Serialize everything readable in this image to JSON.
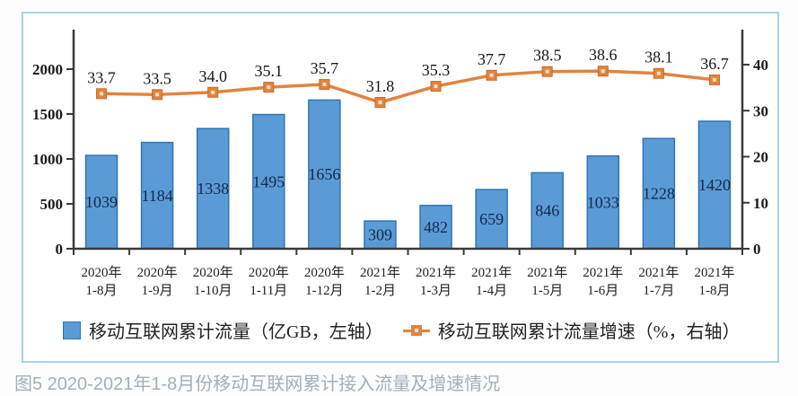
{
  "caption": "图5 2020-2021年1-8月份移动互联网累计接入流量及增速情况",
  "colors": {
    "bar_fill": "#5B9BD5",
    "bar_border": "#2E75B6",
    "line": "#E2833E",
    "line_border": "#C96A28",
    "marker_inner": "#FBE3CC",
    "axis": "#3a3a3a",
    "panel_border": "#ABD2E6",
    "panel_fill": "#ffffff",
    "caption_text": "#A0B0BA"
  },
  "chart_data": {
    "type": "bar",
    "subtype": "bar+line combo, dual axis",
    "title": "",
    "xlabel": "",
    "ylabel_left": "亿GB",
    "ylabel_right": "%",
    "grid": false,
    "legend_position": "bottom",
    "categories": [
      {
        "line1": "2020年",
        "line2": "1-8月"
      },
      {
        "line1": "2020年",
        "line2": "1-9月"
      },
      {
        "line1": "2020年",
        "line2": "1-10月"
      },
      {
        "line1": "2020年",
        "line2": "1-11月"
      },
      {
        "line1": "2020年",
        "line2": "1-12月"
      },
      {
        "line1": "2021年",
        "line2": "1-2月"
      },
      {
        "line1": "2021年",
        "line2": "1-3月"
      },
      {
        "line1": "2021年",
        "line2": "1-4月"
      },
      {
        "line1": "2021年",
        "line2": "1-5月"
      },
      {
        "line1": "2021年",
        "line2": "1-6月"
      },
      {
        "line1": "2021年",
        "line2": "1-7月"
      },
      {
        "line1": "2021年",
        "line2": "1-8月"
      }
    ],
    "series": [
      {
        "name": "移动互联网累计流量（亿GB，左轴）",
        "kind": "bar",
        "axis": "left",
        "values": [
          1039,
          1184,
          1338,
          1495,
          1656,
          309,
          482,
          659,
          846,
          1033,
          1228,
          1420
        ],
        "labels": [
          "1039",
          "1184",
          "1338",
          "1495",
          "1656",
          "309",
          "482",
          "659",
          "846",
          "1033",
          "1228",
          "1420"
        ]
      },
      {
        "name": "移动互联网累计流量增速（%，右轴）",
        "kind": "line",
        "axis": "right",
        "values": [
          33.7,
          33.5,
          34.0,
          35.1,
          35.7,
          31.8,
          35.3,
          37.7,
          38.5,
          38.6,
          38.1,
          36.7
        ],
        "labels": [
          "33.7",
          "33.5",
          "34.0",
          "35.1",
          "35.7",
          "31.8",
          "35.3",
          "37.7",
          "38.5",
          "38.6",
          "38.1",
          "36.7"
        ]
      }
    ],
    "left_axis": {
      "ticks": [
        0,
        500,
        1000,
        1500,
        2000
      ],
      "min": 0,
      "max": 2000
    },
    "right_axis": {
      "ticks": [
        0,
        10,
        20,
        30,
        40
      ],
      "min": 0,
      "max": 40
    }
  }
}
